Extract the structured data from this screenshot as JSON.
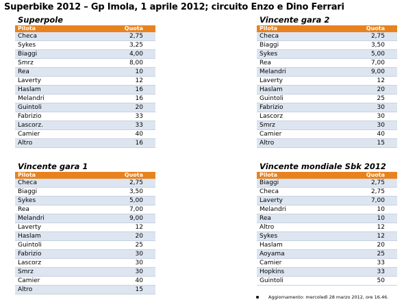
{
  "title": "Superbike 2012 – Gp Imola, 1 aprile 2012; circuito Enzo e Dino Ferrari",
  "tables": [
    {
      "heading": "Superpole",
      "col_pilota": "Pilota",
      "col_quota": "Quota",
      "rows": [
        {
          "pilota": "Checa",
          "quota": "2,75"
        },
        {
          "pilota": "Sykes",
          "quota": "3,25"
        },
        {
          "pilota": "Biaggi",
          "quota": "4,00"
        },
        {
          "pilota": "Smrz",
          "quota": "8,00"
        },
        {
          "pilota": "Rea",
          "quota": "10"
        },
        {
          "pilota": "Laverty",
          "quota": "12"
        },
        {
          "pilota": "Haslam",
          "quota": "16"
        },
        {
          "pilota": "Melandri",
          "quota": "16"
        },
        {
          "pilota": "Guintoli",
          "quota": "20"
        },
        {
          "pilota": "Fabrizio",
          "quota": "33"
        },
        {
          "pilota": "Lascorz.",
          "quota": "33"
        },
        {
          "pilota": "Camier",
          "quota": "40"
        },
        {
          "pilota": "Altro",
          "quota": "16"
        }
      ]
    },
    {
      "heading": "Vincente gara 2",
      "col_pilota": "Pilota",
      "col_quota": "Quota",
      "rows": [
        {
          "pilota": "Checa",
          "quota": "2,75"
        },
        {
          "pilota": "Biaggi",
          "quota": "3,50"
        },
        {
          "pilota": "Sykes",
          "quota": "5,00"
        },
        {
          "pilota": "Rea",
          "quota": "7,00"
        },
        {
          "pilota": "Melandri",
          "quota": "9,00"
        },
        {
          "pilota": "Laverty",
          "quota": "12"
        },
        {
          "pilota": "Haslam",
          "quota": "20"
        },
        {
          "pilota": "Guintoli",
          "quota": "25"
        },
        {
          "pilota": "Fabrizio",
          "quota": "30"
        },
        {
          "pilota": "Lascorz",
          "quota": "30"
        },
        {
          "pilota": "Smrz",
          "quota": "30"
        },
        {
          "pilota": "Camier",
          "quota": "40"
        },
        {
          "pilota": "Altro",
          "quota": "15"
        }
      ]
    },
    {
      "heading": "Vincente gara 1",
      "col_pilota": "Pilota",
      "col_quota": "Quota",
      "rows": [
        {
          "pilota": "Checa",
          "quota": "2,75"
        },
        {
          "pilota": "Biaggi",
          "quota": "3,50"
        },
        {
          "pilota": "Sykes",
          "quota": "5,00"
        },
        {
          "pilota": "Rea",
          "quota": "7,00"
        },
        {
          "pilota": "Melandri",
          "quota": "9,00"
        },
        {
          "pilota": "Laverty",
          "quota": "12"
        },
        {
          "pilota": "Haslam",
          "quota": "20"
        },
        {
          "pilota": "Guintoli",
          "quota": "25"
        },
        {
          "pilota": "Fabrizio",
          "quota": "30"
        },
        {
          "pilota": "Lascorz",
          "quota": "30"
        },
        {
          "pilota": "Smrz",
          "quota": "30"
        },
        {
          "pilota": "Camier",
          "quota": "40"
        },
        {
          "pilota": "Altro",
          "quota": "15"
        }
      ]
    },
    {
      "heading": "Vincente mondiale Sbk 2012",
      "col_pilota": "Pilota",
      "col_quota": "Quota",
      "rows": [
        {
          "pilota": "Biaggi",
          "quota": "2,75"
        },
        {
          "pilota": "Checa",
          "quota": "2,75"
        },
        {
          "pilota": "Laverty",
          "quota": "7,00"
        },
        {
          "pilota": "Melandri",
          "quota": "10"
        },
        {
          "pilota": "Rea",
          "quota": "10"
        },
        {
          "pilota": "Altro",
          "quota": "12"
        },
        {
          "pilota": "Sykes",
          "quota": "12"
        },
        {
          "pilota": "Haslam",
          "quota": "20"
        },
        {
          "pilota": "Aoyama",
          "quota": "25"
        },
        {
          "pilota": "Camier",
          "quota": "33"
        },
        {
          "pilota": "Hopkins",
          "quota": "33"
        },
        {
          "pilota": "Guintoli",
          "quota": "50"
        }
      ]
    }
  ],
  "footer": "Aggiornamento: mercoledì 28 marzo 2012, ore 16.46.",
  "colors": {
    "header_orange": "#e8821e",
    "row_blue": "#dde5f0"
  }
}
